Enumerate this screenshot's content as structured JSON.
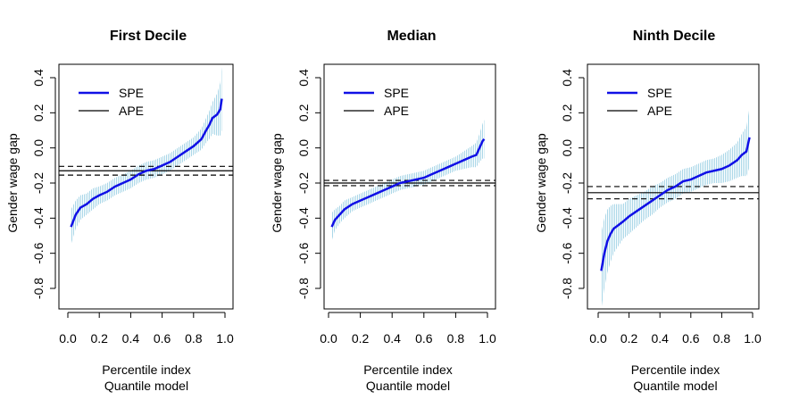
{
  "chart_data": [
    {
      "type": "line",
      "title": "First Decile",
      "xlabel": "Percentile index",
      "xlabel2": "Quantile model",
      "ylabel": "Gender wage gap",
      "xlim": [
        0,
        1
      ],
      "ylim": [
        -0.9,
        0.45
      ],
      "xticks": [
        "0.0",
        "0.2",
        "0.4",
        "0.6",
        "0.8",
        "1.0"
      ],
      "yticks": [
        "-0.8",
        "-0.6",
        "-0.4",
        "-0.2",
        "0.0",
        "0.2",
        "0.4"
      ],
      "legend": {
        "position": "top-left",
        "entries": [
          "SPE",
          "APE"
        ]
      },
      "spe": {
        "x": [
          0.02,
          0.05,
          0.08,
          0.12,
          0.16,
          0.2,
          0.25,
          0.3,
          0.35,
          0.4,
          0.45,
          0.5,
          0.55,
          0.6,
          0.65,
          0.7,
          0.75,
          0.8,
          0.85,
          0.88,
          0.9,
          0.92,
          0.95,
          0.97,
          0.98
        ],
        "y": [
          -0.45,
          -0.38,
          -0.34,
          -0.32,
          -0.29,
          -0.27,
          -0.25,
          -0.22,
          -0.2,
          -0.18,
          -0.15,
          -0.13,
          -0.12,
          -0.1,
          -0.08,
          -0.05,
          -0.02,
          0.01,
          0.05,
          0.1,
          0.13,
          0.17,
          0.19,
          0.22,
          0.28
        ]
      },
      "band_width": [
        0.1,
        0.08,
        0.07,
        0.06,
        0.06,
        0.05,
        0.05,
        0.05,
        0.05,
        0.05,
        0.05,
        0.05,
        0.05,
        0.05,
        0.05,
        0.05,
        0.05,
        0.05,
        0.06,
        0.07,
        0.08,
        0.09,
        0.12,
        0.15,
        0.18
      ],
      "ape": -0.13,
      "ape_ci": [
        -0.105,
        -0.155
      ]
    },
    {
      "type": "line",
      "title": "Median",
      "xlabel": "Percentile index",
      "xlabel2": "Quantile model",
      "ylabel": "Gender wage gap",
      "xlim": [
        0,
        1
      ],
      "ylim": [
        -0.9,
        0.45
      ],
      "xticks": [
        "0.0",
        "0.2",
        "0.4",
        "0.6",
        "0.8",
        "1.0"
      ],
      "yticks": [
        "-0.8",
        "-0.6",
        "-0.4",
        "-0.2",
        "0.0",
        "0.2",
        "0.4"
      ],
      "legend": {
        "position": "top-left",
        "entries": [
          "SPE",
          "APE"
        ]
      },
      "spe": {
        "x": [
          0.02,
          0.04,
          0.07,
          0.1,
          0.15,
          0.2,
          0.25,
          0.3,
          0.35,
          0.4,
          0.45,
          0.5,
          0.55,
          0.6,
          0.65,
          0.7,
          0.75,
          0.8,
          0.85,
          0.9,
          0.93,
          0.95,
          0.97,
          0.98
        ],
        "y": [
          -0.45,
          -0.41,
          -0.38,
          -0.35,
          -0.32,
          -0.3,
          -0.28,
          -0.26,
          -0.24,
          -0.22,
          -0.2,
          -0.19,
          -0.18,
          -0.17,
          -0.15,
          -0.13,
          -0.11,
          -0.09,
          -0.07,
          -0.05,
          -0.04,
          0.0,
          0.04,
          0.05
        ]
      },
      "band_width": [
        0.08,
        0.06,
        0.05,
        0.05,
        0.04,
        0.04,
        0.04,
        0.04,
        0.04,
        0.04,
        0.04,
        0.04,
        0.04,
        0.04,
        0.04,
        0.04,
        0.04,
        0.04,
        0.05,
        0.06,
        0.07,
        0.08,
        0.1,
        0.11
      ],
      "ape": -0.2,
      "ape_ci": [
        -0.185,
        -0.215
      ]
    },
    {
      "type": "line",
      "title": "Ninth Decile",
      "xlabel": "Percentile index",
      "xlabel2": "Quantile model",
      "ylabel": "Gender wage gap",
      "xlim": [
        0,
        1
      ],
      "ylim": [
        -0.9,
        0.45
      ],
      "xticks": [
        "0.0",
        "0.2",
        "0.4",
        "0.6",
        "0.8",
        "1.0"
      ],
      "yticks": [
        "-0.8",
        "-0.6",
        "-0.4",
        "-0.2",
        "0.0",
        "0.2",
        "0.4"
      ],
      "legend": {
        "position": "top-left",
        "entries": [
          "SPE",
          "APE"
        ]
      },
      "spe": {
        "x": [
          0.02,
          0.04,
          0.06,
          0.08,
          0.1,
          0.13,
          0.16,
          0.2,
          0.25,
          0.3,
          0.35,
          0.4,
          0.45,
          0.5,
          0.55,
          0.6,
          0.65,
          0.7,
          0.75,
          0.8,
          0.85,
          0.9,
          0.93,
          0.96,
          0.98
        ],
        "y": [
          -0.7,
          -0.6,
          -0.53,
          -0.49,
          -0.46,
          -0.44,
          -0.42,
          -0.39,
          -0.36,
          -0.33,
          -0.3,
          -0.27,
          -0.24,
          -0.22,
          -0.19,
          -0.18,
          -0.16,
          -0.14,
          -0.13,
          -0.12,
          -0.1,
          -0.07,
          -0.04,
          -0.02,
          0.06
        ]
      },
      "band_width": [
        0.22,
        0.2,
        0.18,
        0.16,
        0.14,
        0.12,
        0.1,
        0.1,
        0.09,
        0.08,
        0.08,
        0.07,
        0.07,
        0.07,
        0.07,
        0.07,
        0.07,
        0.07,
        0.07,
        0.08,
        0.09,
        0.1,
        0.12,
        0.14,
        0.17
      ],
      "ape": -0.255,
      "ape_ci": [
        -0.22,
        -0.29
      ]
    }
  ],
  "colors": {
    "spe_line": "#1010e6",
    "band": "#aad7e8",
    "ape_line": "#000000"
  }
}
